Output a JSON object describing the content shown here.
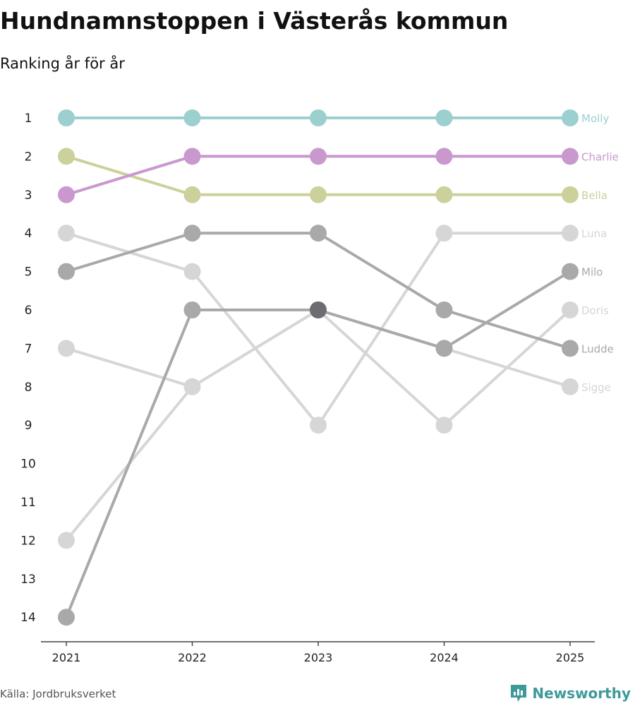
{
  "header": {
    "title": "Hundnamnstoppen i Västerås kommun",
    "subtitle": "Ranking år för år"
  },
  "footer": {
    "source": "Källa: Jordbruksverket",
    "brand": "Newsworthy"
  },
  "colors": {
    "teal": "#9ccfcf",
    "purple": "#c998cf",
    "olive": "#ccd19b",
    "mid_gray": "#a9a9aa",
    "light_gray": "#d6d6d6",
    "dark_gray": "#6d6c72",
    "brand": "#3d9a99"
  },
  "chart_data": {
    "type": "line",
    "title": "Hundnamnstoppen i Västerås kommun",
    "subtitle": "Ranking år för år",
    "xlabel": "",
    "ylabel": "",
    "categories": [
      "2021",
      "2022",
      "2023",
      "2024",
      "2025"
    ],
    "y_ticks": [
      "1",
      "2",
      "3",
      "4",
      "5",
      "6",
      "7",
      "8",
      "9",
      "10",
      "11",
      "12",
      "13",
      "14"
    ],
    "ylim": [
      1,
      14
    ],
    "y_reversed": true,
    "grid": false,
    "series": [
      {
        "name": "Sigge",
        "values": [
          7,
          8,
          6,
          7,
          8
        ],
        "color": "#d6d6d6"
      },
      {
        "name": "Doris",
        "values": [
          12,
          8,
          6,
          9,
          6
        ],
        "color": "#d6d6d6"
      },
      {
        "name": "Luna",
        "values": [
          4,
          5,
          9,
          4,
          4
        ],
        "color": "#d6d6d6"
      },
      {
        "name": "Ludde",
        "values": [
          5,
          4,
          4,
          6,
          7
        ],
        "color": "#a9a9aa"
      },
      {
        "name": "Milo",
        "values": [
          14,
          6,
          6,
          7,
          5
        ],
        "color": "#a9a9aa"
      },
      {
        "name": "Bella",
        "values": [
          2,
          3,
          3,
          3,
          3
        ],
        "color": "#ccd19b"
      },
      {
        "name": "Charlie",
        "values": [
          3,
          2,
          2,
          2,
          2
        ],
        "color": "#c998cf"
      },
      {
        "name": "Molly",
        "values": [
          1,
          1,
          1,
          1,
          1
        ],
        "color": "#9ccfcf"
      }
    ]
  }
}
